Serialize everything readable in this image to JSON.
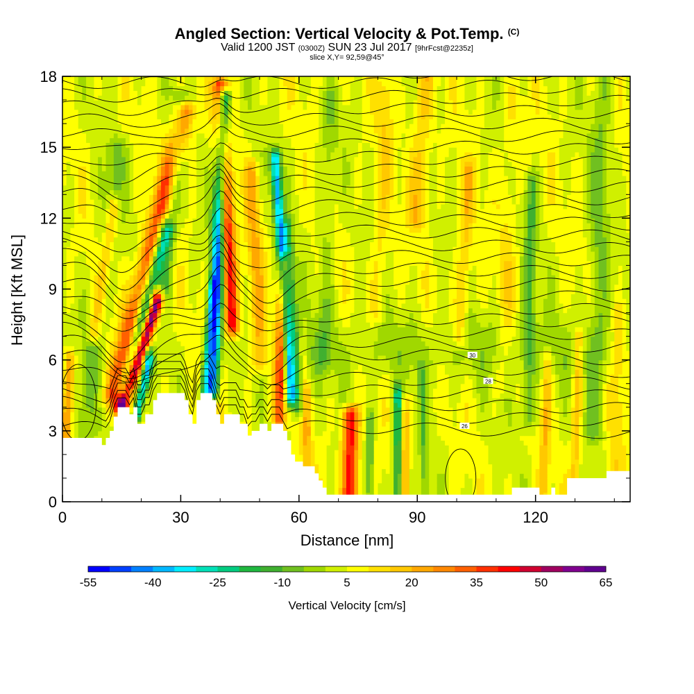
{
  "header": {
    "title": "Angled Section: Vertical Velocity & Pot.Temp.",
    "title_unit": "(C)",
    "subtitle_valid": "Valid 1200 JST",
    "subtitle_utc": "(0300Z)",
    "subtitle_date": "SUN 23 Jul 2017",
    "subtitle_fcst": "[9hrFcst@2235z]",
    "slice": "slice X,Y= 92,59@45°"
  },
  "chart_data": {
    "type": "heatmap",
    "xlabel": "Distance [nm]",
    "ylabel": "Height [Kft MSL]",
    "xlim": [
      0,
      144
    ],
    "ylim": [
      0,
      18
    ],
    "x_ticks": [
      "0",
      "30",
      "60",
      "90",
      "120"
    ],
    "x_tick_values": [
      0,
      30,
      60,
      90,
      120
    ],
    "y_ticks": [
      "0",
      "3",
      "6",
      "9",
      "12",
      "15",
      "18"
    ],
    "y_tick_values": [
      0,
      3,
      6,
      9,
      12,
      15,
      18
    ],
    "colorbar": {
      "label": "Vertical Velocity [cm/s]",
      "tick_labels": [
        "-55",
        "-40",
        "-25",
        "-10",
        "5",
        "20",
        "35",
        "50",
        "65"
      ],
      "tick_values": [
        -55,
        -40,
        -25,
        -10,
        5,
        20,
        35,
        50,
        65
      ],
      "min": -55,
      "max": 65,
      "colors": [
        "#0000ff",
        "#0040ff",
        "#0080ff",
        "#00b8ff",
        "#00eeff",
        "#00e0b8",
        "#00cc80",
        "#20b840",
        "#40b030",
        "#70c020",
        "#a0d800",
        "#d0f000",
        "#ffff00",
        "#ffe000",
        "#ffc800",
        "#ffa800",
        "#ff8800",
        "#ff6000",
        "#ff3000",
        "#ff0000",
        "#d00030",
        "#a00060",
        "#800090",
        "#600090"
      ]
    },
    "terrain_kft": [
      [
        0,
        2.7
      ],
      [
        10,
        2.7
      ],
      [
        10,
        2.4
      ],
      [
        11,
        2.4
      ],
      [
        11,
        2.7
      ],
      [
        12,
        2.7
      ],
      [
        12,
        3.0
      ],
      [
        13,
        3.0
      ],
      [
        13,
        3.6
      ],
      [
        14,
        3.6
      ],
      [
        14,
        4.0
      ],
      [
        17,
        4.0
      ],
      [
        17,
        3.7
      ],
      [
        18,
        3.7
      ],
      [
        18,
        4.0
      ],
      [
        19,
        4.0
      ],
      [
        19,
        3.3
      ],
      [
        21,
        3.3
      ],
      [
        21,
        3.7
      ],
      [
        23,
        3.7
      ],
      [
        23,
        4.3
      ],
      [
        24,
        4.3
      ],
      [
        24,
        4.6
      ],
      [
        31,
        4.6
      ],
      [
        31,
        4.3
      ],
      [
        32,
        4.3
      ],
      [
        32,
        3.7
      ],
      [
        33,
        3.7
      ],
      [
        33,
        3.3
      ],
      [
        34,
        3.3
      ],
      [
        34,
        4.3
      ],
      [
        35,
        4.3
      ],
      [
        35,
        4.6
      ],
      [
        38,
        4.6
      ],
      [
        38,
        4.3
      ],
      [
        39,
        4.3
      ],
      [
        39,
        3.7
      ],
      [
        40,
        3.7
      ],
      [
        40,
        3.3
      ],
      [
        41,
        3.3
      ],
      [
        41,
        3.7
      ],
      [
        45,
        3.7
      ],
      [
        45,
        3.3
      ],
      [
        47,
        3.3
      ],
      [
        47,
        2.8
      ],
      [
        48,
        2.8
      ],
      [
        48,
        3.0
      ],
      [
        50,
        3.0
      ],
      [
        50,
        3.3
      ],
      [
        52,
        3.3
      ],
      [
        52,
        3.0
      ],
      [
        53,
        3.0
      ],
      [
        53,
        3.3
      ],
      [
        56,
        3.3
      ],
      [
        56,
        3.0
      ],
      [
        57,
        3.0
      ],
      [
        57,
        2.6
      ],
      [
        58,
        2.6
      ],
      [
        58,
        2.0
      ],
      [
        59,
        2.0
      ],
      [
        59,
        1.7
      ],
      [
        61,
        1.7
      ],
      [
        61,
        1.5
      ],
      [
        64,
        1.5
      ],
      [
        64,
        1.2
      ],
      [
        65,
        1.2
      ],
      [
        65,
        0.9
      ],
      [
        66,
        0.9
      ],
      [
        66,
        0.6
      ],
      [
        67,
        0.6
      ],
      [
        67,
        0.3
      ],
      [
        114,
        0.3
      ],
      [
        114,
        0.6
      ],
      [
        121,
        0.6
      ],
      [
        121,
        0.3
      ],
      [
        124,
        0.3
      ],
      [
        124,
        0.6
      ],
      [
        125,
        0.6
      ],
      [
        125,
        0.3
      ],
      [
        128,
        0.3
      ],
      [
        128,
        1.0
      ],
      [
        138,
        1.0
      ],
      [
        138,
        1.3
      ],
      [
        144,
        1.3
      ]
    ],
    "velocity_features": [
      {
        "x0": 13,
        "z0": 4.5,
        "x1": 31,
        "z1": 16.5,
        "w": 2.6,
        "v": 30
      },
      {
        "x0": 15,
        "z0": 4.0,
        "x1": 24,
        "z1": 8.5,
        "w": 1.6,
        "v": 58
      },
      {
        "x0": 16,
        "z0": 4.8,
        "x1": 26,
        "z1": 11.5,
        "w": 1.8,
        "v": -35
      },
      {
        "x0": 8,
        "z0": 7.2,
        "x1": 13,
        "z1": 12.5,
        "w": 1.6,
        "v": 18
      },
      {
        "x0": 19,
        "z0": 3.8,
        "x1": 22,
        "z1": 6.0,
        "w": 1.2,
        "v": -40
      },
      {
        "x0": 40,
        "z0": 17.5,
        "x1": 43,
        "z1": 7.5,
        "w": 1.8,
        "v": 40
      },
      {
        "x0": 38,
        "z0": 4.8,
        "x1": 41,
        "z1": 17.0,
        "w": 1.6,
        "v": -50
      },
      {
        "x0": 36,
        "z0": 4.6,
        "x1": 38,
        "z1": 9.0,
        "w": 1.2,
        "v": -20
      },
      {
        "x0": 55,
        "z0": 3.5,
        "x1": 56,
        "z1": 10.0,
        "w": 1.5,
        "v": 30
      },
      {
        "x0": 58,
        "z0": 4.5,
        "x1": 54,
        "z1": 14.5,
        "w": 1.3,
        "v": -42
      },
      {
        "x0": 60,
        "z0": 4.0,
        "x1": 57,
        "z1": 11.5,
        "w": 1.3,
        "v": -20
      },
      {
        "x0": 50,
        "z0": 6.0,
        "x1": 48,
        "z1": 14.0,
        "w": 1.8,
        "v": 15
      },
      {
        "x0": 73,
        "z0": 0.3,
        "x1": 73,
        "z1": 3.6,
        "w": 2.0,
        "v": 40
      },
      {
        "x0": 85,
        "z0": 0.3,
        "x1": 85,
        "z1": 4.5,
        "w": 1.0,
        "v": -28
      },
      {
        "x0": 87,
        "z0": 0.3,
        "x1": 87,
        "z1": 4.0,
        "w": 1.0,
        "v": 15
      },
      {
        "x0": 78,
        "z0": 0.5,
        "x1": 78,
        "z1": 3.5,
        "w": 1.0,
        "v": -15
      },
      {
        "x0": 62,
        "z0": 0.5,
        "x1": 62,
        "z1": 4.5,
        "w": 1.2,
        "v": 14
      },
      {
        "x0": 92,
        "z0": 0.5,
        "x1": 91,
        "z1": 5.5,
        "w": 1.0,
        "v": -12
      },
      {
        "x0": 122,
        "z0": 0.5,
        "x1": 123,
        "z1": 6.0,
        "w": 1.2,
        "v": 12
      },
      {
        "x0": 130,
        "z0": 1.0,
        "x1": 131,
        "z1": 7.0,
        "w": 1.2,
        "v": 14
      },
      {
        "x0": 140,
        "z0": 0.5,
        "x1": 141,
        "z1": 8.0,
        "w": 2.0,
        "v": 8
      },
      {
        "x0": 101,
        "z0": 7.0,
        "x1": 103,
        "z1": 14.0,
        "w": 1.8,
        "v": 12
      },
      {
        "x0": 112,
        "z0": 5.0,
        "x1": 114,
        "z1": 17.0,
        "w": 2.2,
        "v": 6
      },
      {
        "x0": 135,
        "z0": 3.0,
        "x1": 137,
        "z1": 18.0,
        "w": 2.5,
        "v": -10
      },
      {
        "x0": 118,
        "z0": 3.5,
        "x1": 119,
        "z1": 13.5,
        "w": 1.6,
        "v": -14
      },
      {
        "x0": 26,
        "z0": 9.0,
        "x1": 30,
        "z1": 17.0,
        "w": 1.8,
        "v": -14
      },
      {
        "x0": 5,
        "z0": 2.8,
        "x1": 14,
        "z1": 15.0,
        "w": 2.5,
        "v": -10
      },
      {
        "x0": 66,
        "z0": 6.0,
        "x1": 68,
        "z1": 17.0,
        "w": 2.0,
        "v": -8
      },
      {
        "x0": 80,
        "z0": 8.0,
        "x1": 82,
        "z1": 17.5,
        "w": 2.0,
        "v": 8
      },
      {
        "x0": 90,
        "z0": 12.0,
        "x1": 92,
        "z1": 18.0,
        "w": 2.5,
        "v": 12
      },
      {
        "x0": 1,
        "z0": 2.8,
        "x1": 2,
        "z1": 6.0,
        "w": 1.2,
        "v": 22
      }
    ],
    "theta_contours": [
      {
        "label": "30",
        "x": 104,
        "z": 6.2
      },
      {
        "label": "28",
        "x": 108,
        "z": 5.1
      },
      {
        "label": "26",
        "x": 102,
        "z": 3.2
      }
    ]
  }
}
